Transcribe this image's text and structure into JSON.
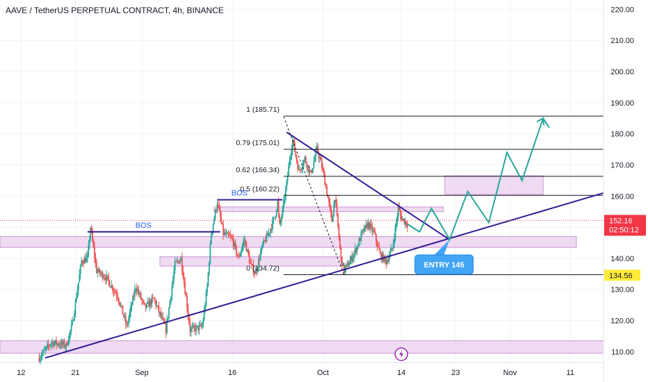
{
  "header": {
    "title": "AAVE / TetherUS PERPETUAL CONTRACT, 4h, BINANCE"
  },
  "colors": {
    "up": "#26a69a",
    "down": "#ef5350",
    "zone_fill": "#e1bee7",
    "zone_stroke": "#ce93d8",
    "trendline": "#311b92",
    "bos": "#311b92",
    "projection": "#26a69a",
    "fib": "#131722",
    "entry_bg": "#42a5f5",
    "price_tag": "#f23645",
    "low_tag": "#ffeb3b"
  },
  "chart_data": {
    "type": "candlestick",
    "symbol": "AAVE / TetherUS PERPETUAL CONTRACT",
    "interval": "4h",
    "exchange": "BINANCE",
    "y_ticks": [
      "220.00",
      "210.00",
      "200.00",
      "190.00",
      "180.00",
      "170.00",
      "160.00",
      "150.00",
      "140.00",
      "130.00",
      "120.00",
      "110.00"
    ],
    "y_tick_values": [
      220,
      210,
      200,
      190,
      180,
      170,
      160,
      150,
      140,
      130,
      120,
      110
    ],
    "ylim": [
      106.5,
      223
    ],
    "x_ticks": [
      {
        "label": "12",
        "day": 0
      },
      {
        "label": "21",
        "day": 9
      },
      {
        "label": "Sep",
        "day": 20
      },
      {
        "label": "16",
        "day": 35
      },
      {
        "label": "Oct",
        "day": 50
      },
      {
        "label": "14",
        "day": 63
      },
      {
        "label": "23",
        "day": 72
      },
      {
        "label": "Nov",
        "day": 81
      },
      {
        "label": "11",
        "day": 91
      }
    ],
    "xlim": [
      -3.5,
      96.5
    ],
    "last_day": 64,
    "candle_anchors": [
      [
        3,
        108
      ],
      [
        5,
        113
      ],
      [
        7.5,
        112
      ],
      [
        8.5,
        119
      ],
      [
        10,
        139
      ],
      [
        11,
        140
      ],
      [
        11.5,
        150
      ],
      [
        12.5,
        136
      ],
      [
        14,
        134
      ],
      [
        16,
        128
      ],
      [
        17.5,
        118
      ],
      [
        19,
        131
      ],
      [
        20.5,
        124
      ],
      [
        22,
        127
      ],
      [
        24,
        117
      ],
      [
        25.5,
        138
      ],
      [
        26.5,
        140
      ],
      [
        28,
        117
      ],
      [
        30,
        118
      ],
      [
        30.8,
        130
      ],
      [
        31.5,
        148
      ],
      [
        32.5,
        158
      ],
      [
        33.5,
        148
      ],
      [
        35,
        146
      ],
      [
        36,
        140
      ],
      [
        37,
        146
      ],
      [
        38,
        138
      ],
      [
        38.8,
        135
      ],
      [
        40,
        144
      ],
      [
        41,
        148
      ],
      [
        42,
        153
      ],
      [
        42.5,
        158
      ],
      [
        42.8,
        150
      ],
      [
        43.3,
        155
      ],
      [
        44,
        164
      ],
      [
        44.5,
        172
      ],
      [
        45,
        178
      ],
      [
        46,
        168
      ],
      [
        47,
        172
      ],
      [
        48,
        167
      ],
      [
        49,
        175
      ],
      [
        49.5,
        172
      ],
      [
        50,
        168
      ],
      [
        50.5,
        163
      ],
      [
        51.5,
        152
      ],
      [
        52,
        160
      ],
      [
        52.5,
        150
      ],
      [
        53,
        140
      ],
      [
        53.5,
        136
      ],
      [
        54.5,
        139
      ],
      [
        55.5,
        143
      ],
      [
        56.5,
        148
      ],
      [
        57.5,
        151
      ],
      [
        58.5,
        148
      ],
      [
        59.5,
        141
      ],
      [
        60.5,
        139
      ],
      [
        61.5,
        143
      ],
      [
        62.5,
        156
      ],
      [
        63,
        153
      ],
      [
        64,
        151
      ]
    ],
    "support_zones": [
      {
        "y1": 113.5,
        "y2": 109.5,
        "from_day": -3.5,
        "to_day": 96.5
      },
      {
        "y1": 147,
        "y2": 143.5,
        "from_day": -3.5,
        "to_day": 92
      },
      {
        "y1": 140.5,
        "y2": 137.5,
        "from_day": 23,
        "to_day": 53
      },
      {
        "y1": 156.5,
        "y2": 155,
        "from_day": 32,
        "to_day": 70
      },
      {
        "y1": 166.5,
        "y2": 160.5,
        "from_day": 70.2,
        "to_day": 86.5
      }
    ],
    "fib_levels": [
      {
        "label": "1 (185.71)",
        "price": 185.71
      },
      {
        "label": "0.79 (175.01)",
        "price": 175.01
      },
      {
        "label": "0.62 (166.34)",
        "price": 166.34
      },
      {
        "label": "0.5 (160.22)",
        "price": 160.22
      },
      {
        "label": "0 (134.72)",
        "price": 134.72
      }
    ],
    "fib_from_day": 43.5,
    "fib_to_day": 96.5,
    "bos": [
      {
        "label": "BOS",
        "price": 148.5,
        "from_day": 11,
        "to_day": 33
      },
      {
        "label": "BOS",
        "price": 158.8,
        "from_day": 32.5,
        "to_day": 43.3
      }
    ],
    "trendlines": [
      {
        "from": [
          4,
          108
        ],
        "to": [
          96.5,
          161
        ]
      },
      {
        "from": [
          44,
          180.5
        ],
        "to": [
          71,
          146
        ]
      }
    ],
    "fib_diagonal": {
      "from": [
        43.5,
        185.5
      ],
      "to": [
        53.5,
        134.7
      ]
    },
    "projection_path": [
      [
        64,
        151
      ],
      [
        66,
        148.5
      ],
      [
        68,
        156
      ],
      [
        71,
        146
      ],
      [
        74,
        161.5
      ],
      [
        77.5,
        151.5
      ],
      [
        80.5,
        174
      ],
      [
        83,
        165
      ],
      [
        86.5,
        185
      ],
      [
        87.5,
        182
      ]
    ],
    "entry_label": "ENTRY 145",
    "entry_point": [
      71,
      146
    ],
    "current_price": "152.16",
    "countdown": "02:50:12",
    "current_price_value": 152.16,
    "low_tag": "134.56",
    "low_tag_value": 134.56
  }
}
